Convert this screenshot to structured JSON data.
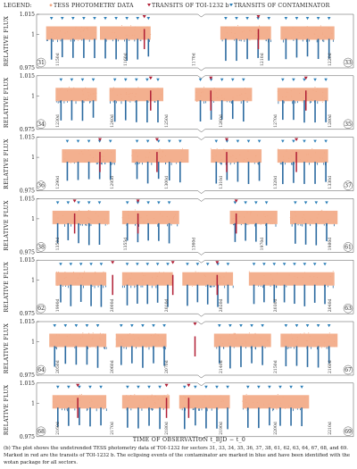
{
  "legend": {
    "title": "LEGEND:",
    "items": [
      {
        "label": "TESS PHOTOMETRY DATA",
        "marker": "dot"
      },
      {
        "label": "TRANSITS OF TOI-1232 b",
        "marker": "triangle"
      },
      {
        "label": "TRANSITS OF CONTAMINATOR",
        "marker": "triangle"
      }
    ]
  },
  "colors": {
    "photometry": "#f2a783",
    "eclipse": "#2b6aa0",
    "transit_planet": "#b01e35",
    "transit_contaminator": "#2c7fb8"
  },
  "caption": "(b) The plot shows the undetrended TESS photometry data of TOI-1232 for sectors 31, 33, 34, 35, 36, 37, 38, 61, 62, 63, 64, 67, 68, and 69. Marked in red are the transits of TOI-1232 b. The eclipsing events of the contaminator are marked in blue and have been identified with the wotan package for all sectors.",
  "chart_data": {
    "type": "scatter",
    "ylabel": "RELATIVE FLUX",
    "xlabel": "TIME OF OBSERVATION t_BJD − t_0",
    "ylim": [
      0.975,
      1.015
    ],
    "yticks": [
      0.975,
      1,
      1.015
    ],
    "rows": [
      {
        "left_sector": "31",
        "right_sector": "33",
        "segments": [
          [
            0.03,
            0.19
          ],
          [
            0.2,
            0.36
          ],
          [
            0.58,
            0.74
          ],
          [
            0.77,
            0.94
          ]
        ],
        "date_labels": [
          "1150d",
          "1160d",
          "1170d",
          "1210d",
          "1220d"
        ],
        "planet_transits": [
          0.34,
          0.7
        ],
        "contaminator_period": 0.0
      },
      {
        "left_sector": "34",
        "right_sector": "35",
        "segments": [
          [
            0.06,
            0.19
          ],
          [
            0.23,
            0.4
          ],
          [
            0.5,
            0.68
          ],
          [
            0.76,
            0.92
          ]
        ],
        "date_labels": [
          "1230d",
          "1240d",
          "1250d",
          "1260d",
          "1270d",
          "1280d"
        ],
        "planet_transits": [
          0.36,
          0.55,
          0.85
        ],
        "contaminator_period": 0.034
      },
      {
        "left_sector": "36",
        "right_sector": "37",
        "segments": [
          [
            0.08,
            0.25
          ],
          [
            0.3,
            0.48
          ],
          [
            0.55,
            0.71
          ],
          [
            0.76,
            0.92
          ]
        ],
        "date_labels": [
          "1290d",
          "1295d",
          "1300d",
          "1310d",
          "1320d",
          "1330d"
        ],
        "planet_transits": [
          0.2,
          0.38,
          0.6,
          0.82
        ],
        "contaminator_period": 0.034
      },
      {
        "left_sector": "38",
        "right_sector": "61",
        "segments": [
          [
            0.05,
            0.23
          ],
          [
            0.27,
            0.45
          ],
          [
            0.61,
            0.76
          ],
          [
            0.8,
            0.95
          ]
        ],
        "date_labels": [
          "1350d",
          "1355d",
          "1360d",
          "1970d",
          "1980d"
        ],
        "planet_transits": [
          0.12,
          0.32,
          0.63
        ],
        "contaminator_period": 0.033
      },
      {
        "left_sector": "62",
        "right_sector": "63",
        "segments": [
          [
            0.06,
            0.22
          ],
          [
            0.27,
            0.43
          ],
          [
            0.46,
            0.62
          ],
          [
            0.67,
            0.94
          ]
        ],
        "date_labels": [
          "1990d",
          "2000d",
          "2010d",
          "2020d",
          "2030d",
          "2040d"
        ],
        "planet_transits": [
          0.24,
          0.43,
          0.57
        ],
        "contaminator_period": 0.032
      },
      {
        "left_sector": "64",
        "right_sector": "67",
        "segments": [
          [
            0.04,
            0.22
          ],
          [
            0.25,
            0.41
          ],
          [
            0.56,
            0.74
          ],
          [
            0.77,
            0.95
          ]
        ],
        "date_labels": [
          "2050d",
          "2060d",
          "2070d",
          "2140d",
          "2150d",
          "2160d"
        ],
        "planet_transits": [
          0.5
        ],
        "contaminator_period": 0.034
      },
      {
        "left_sector": "68",
        "right_sector": "69",
        "segments": [
          [
            0.05,
            0.22
          ],
          [
            0.27,
            0.42
          ],
          [
            0.45,
            0.61
          ],
          [
            0.65,
            0.86
          ]
        ],
        "date_labels": [
          "2160d",
          "2170d",
          "2180d",
          "2190d",
          "2200d",
          "2210d"
        ],
        "planet_transits": [
          0.13,
          0.41,
          0.48
        ],
        "contaminator_period": 0.034
      }
    ]
  }
}
